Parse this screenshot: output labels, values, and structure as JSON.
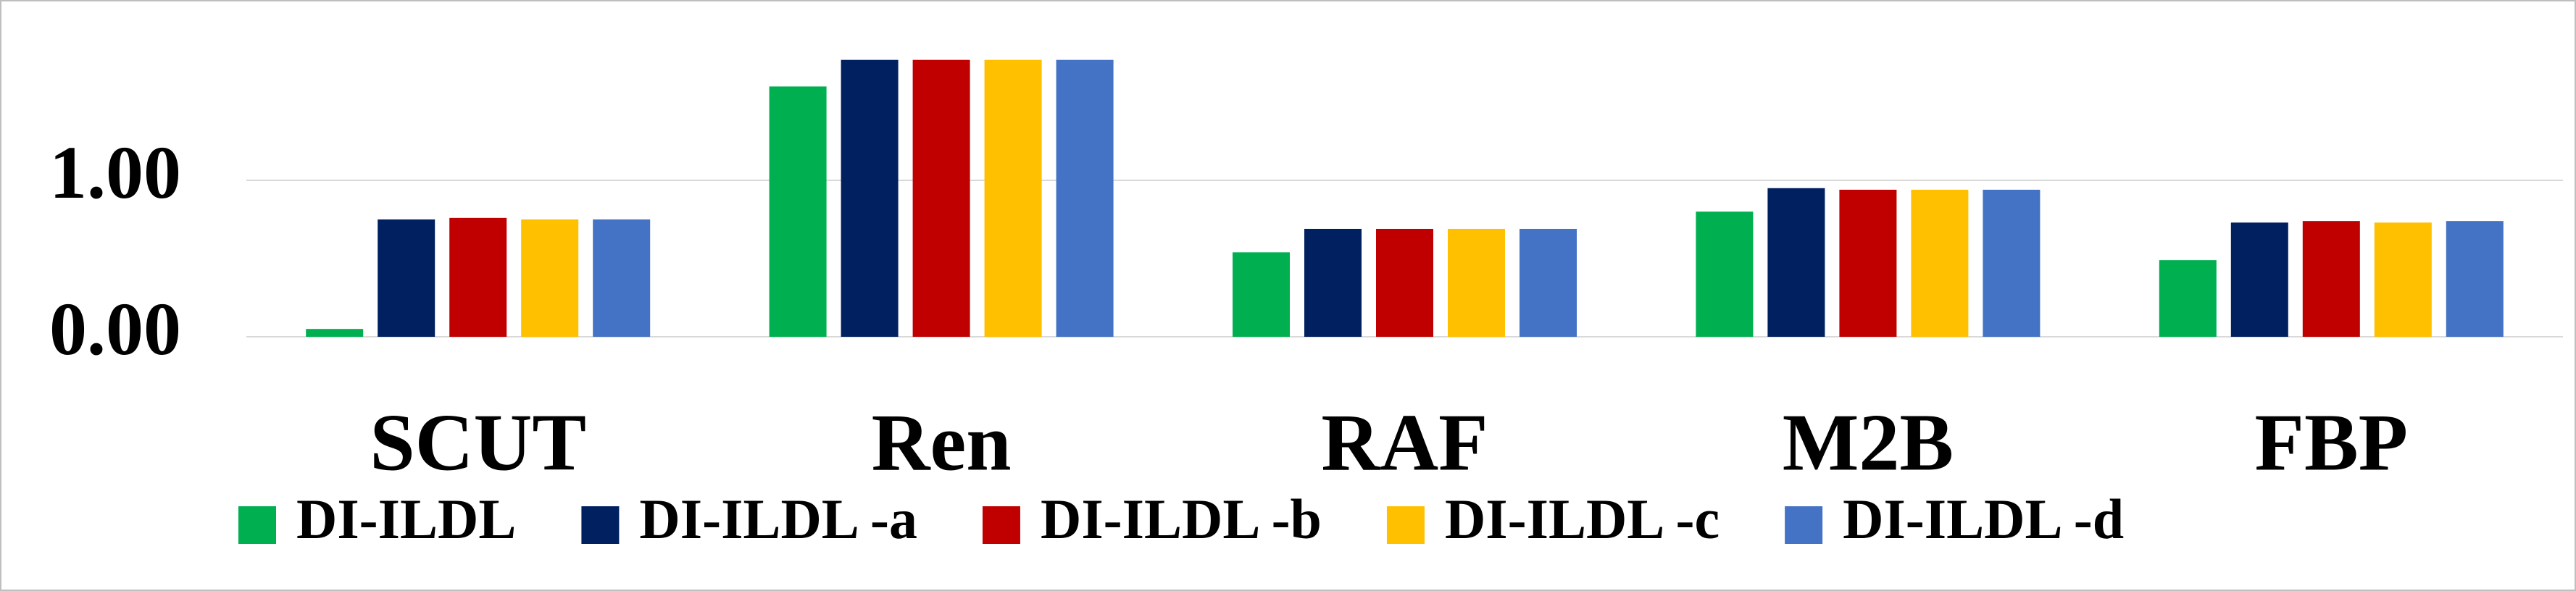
{
  "chart_data": {
    "type": "bar",
    "categories": [
      "SCUT",
      "Ren",
      "RAF",
      "M2B",
      "FBP"
    ],
    "series": [
      {
        "name": "DI-ILDL",
        "color": "#00b050",
        "values": [
          0.05,
          1.6,
          0.54,
          0.8,
          0.49
        ]
      },
      {
        "name": "DI-ILDL -a",
        "color": "#002060",
        "values": [
          0.75,
          1.77,
          0.69,
          0.95,
          0.73
        ]
      },
      {
        "name": "DI-ILDL -b",
        "color": "#c00000",
        "values": [
          0.76,
          1.77,
          0.69,
          0.94,
          0.74
        ]
      },
      {
        "name": "DI-ILDL -c",
        "color": "#ffc000",
        "values": [
          0.75,
          1.77,
          0.69,
          0.94,
          0.73
        ]
      },
      {
        "name": "DI-ILDL -d",
        "color": "#4472c4",
        "values": [
          0.75,
          1.77,
          0.69,
          0.94,
          0.74
        ]
      }
    ],
    "ylim": [
      0,
      2
    ],
    "yticks": [
      {
        "value": 0,
        "label": "0.00"
      },
      {
        "value": 1,
        "label": "1.00"
      }
    ],
    "grid": true,
    "legend": "bottom"
  }
}
